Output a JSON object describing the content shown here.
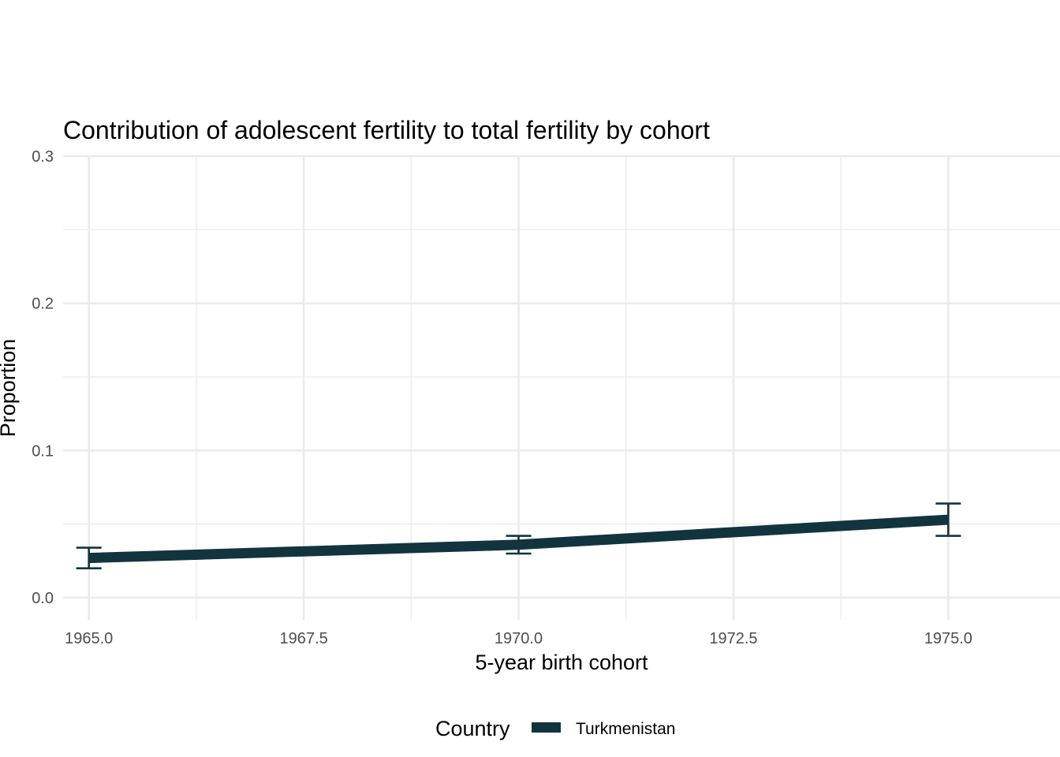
{
  "chart_data": {
    "type": "line",
    "title": "Contribution of adolescent fertility to total fertility by cohort",
    "xlabel": "5-year birth cohort",
    "ylabel": "Proportion",
    "xlim": [
      1964.7,
      1976.3
    ],
    "ylim": [
      -0.015,
      0.3
    ],
    "x_ticks": [
      1965.0,
      1967.5,
      1970.0,
      1972.5,
      1975.0
    ],
    "x_tick_labels": [
      "1965.0",
      "1967.5",
      "1970.0",
      "1972.5",
      "1975.0"
    ],
    "y_ticks": [
      0.0,
      0.1,
      0.2,
      0.3
    ],
    "y_tick_labels": [
      "0.0",
      "0.1",
      "0.2",
      "0.3"
    ],
    "grid": true,
    "legend": {
      "title": "Country",
      "position": "bottom"
    },
    "series": [
      {
        "name": "Turkmenistan",
        "color": "#12343f",
        "x": [
          1965,
          1970,
          1975
        ],
        "y": [
          0.027,
          0.036,
          0.053
        ],
        "error_low": [
          0.02,
          0.03,
          0.042
        ],
        "error_high": [
          0.034,
          0.042,
          0.064
        ]
      }
    ]
  }
}
